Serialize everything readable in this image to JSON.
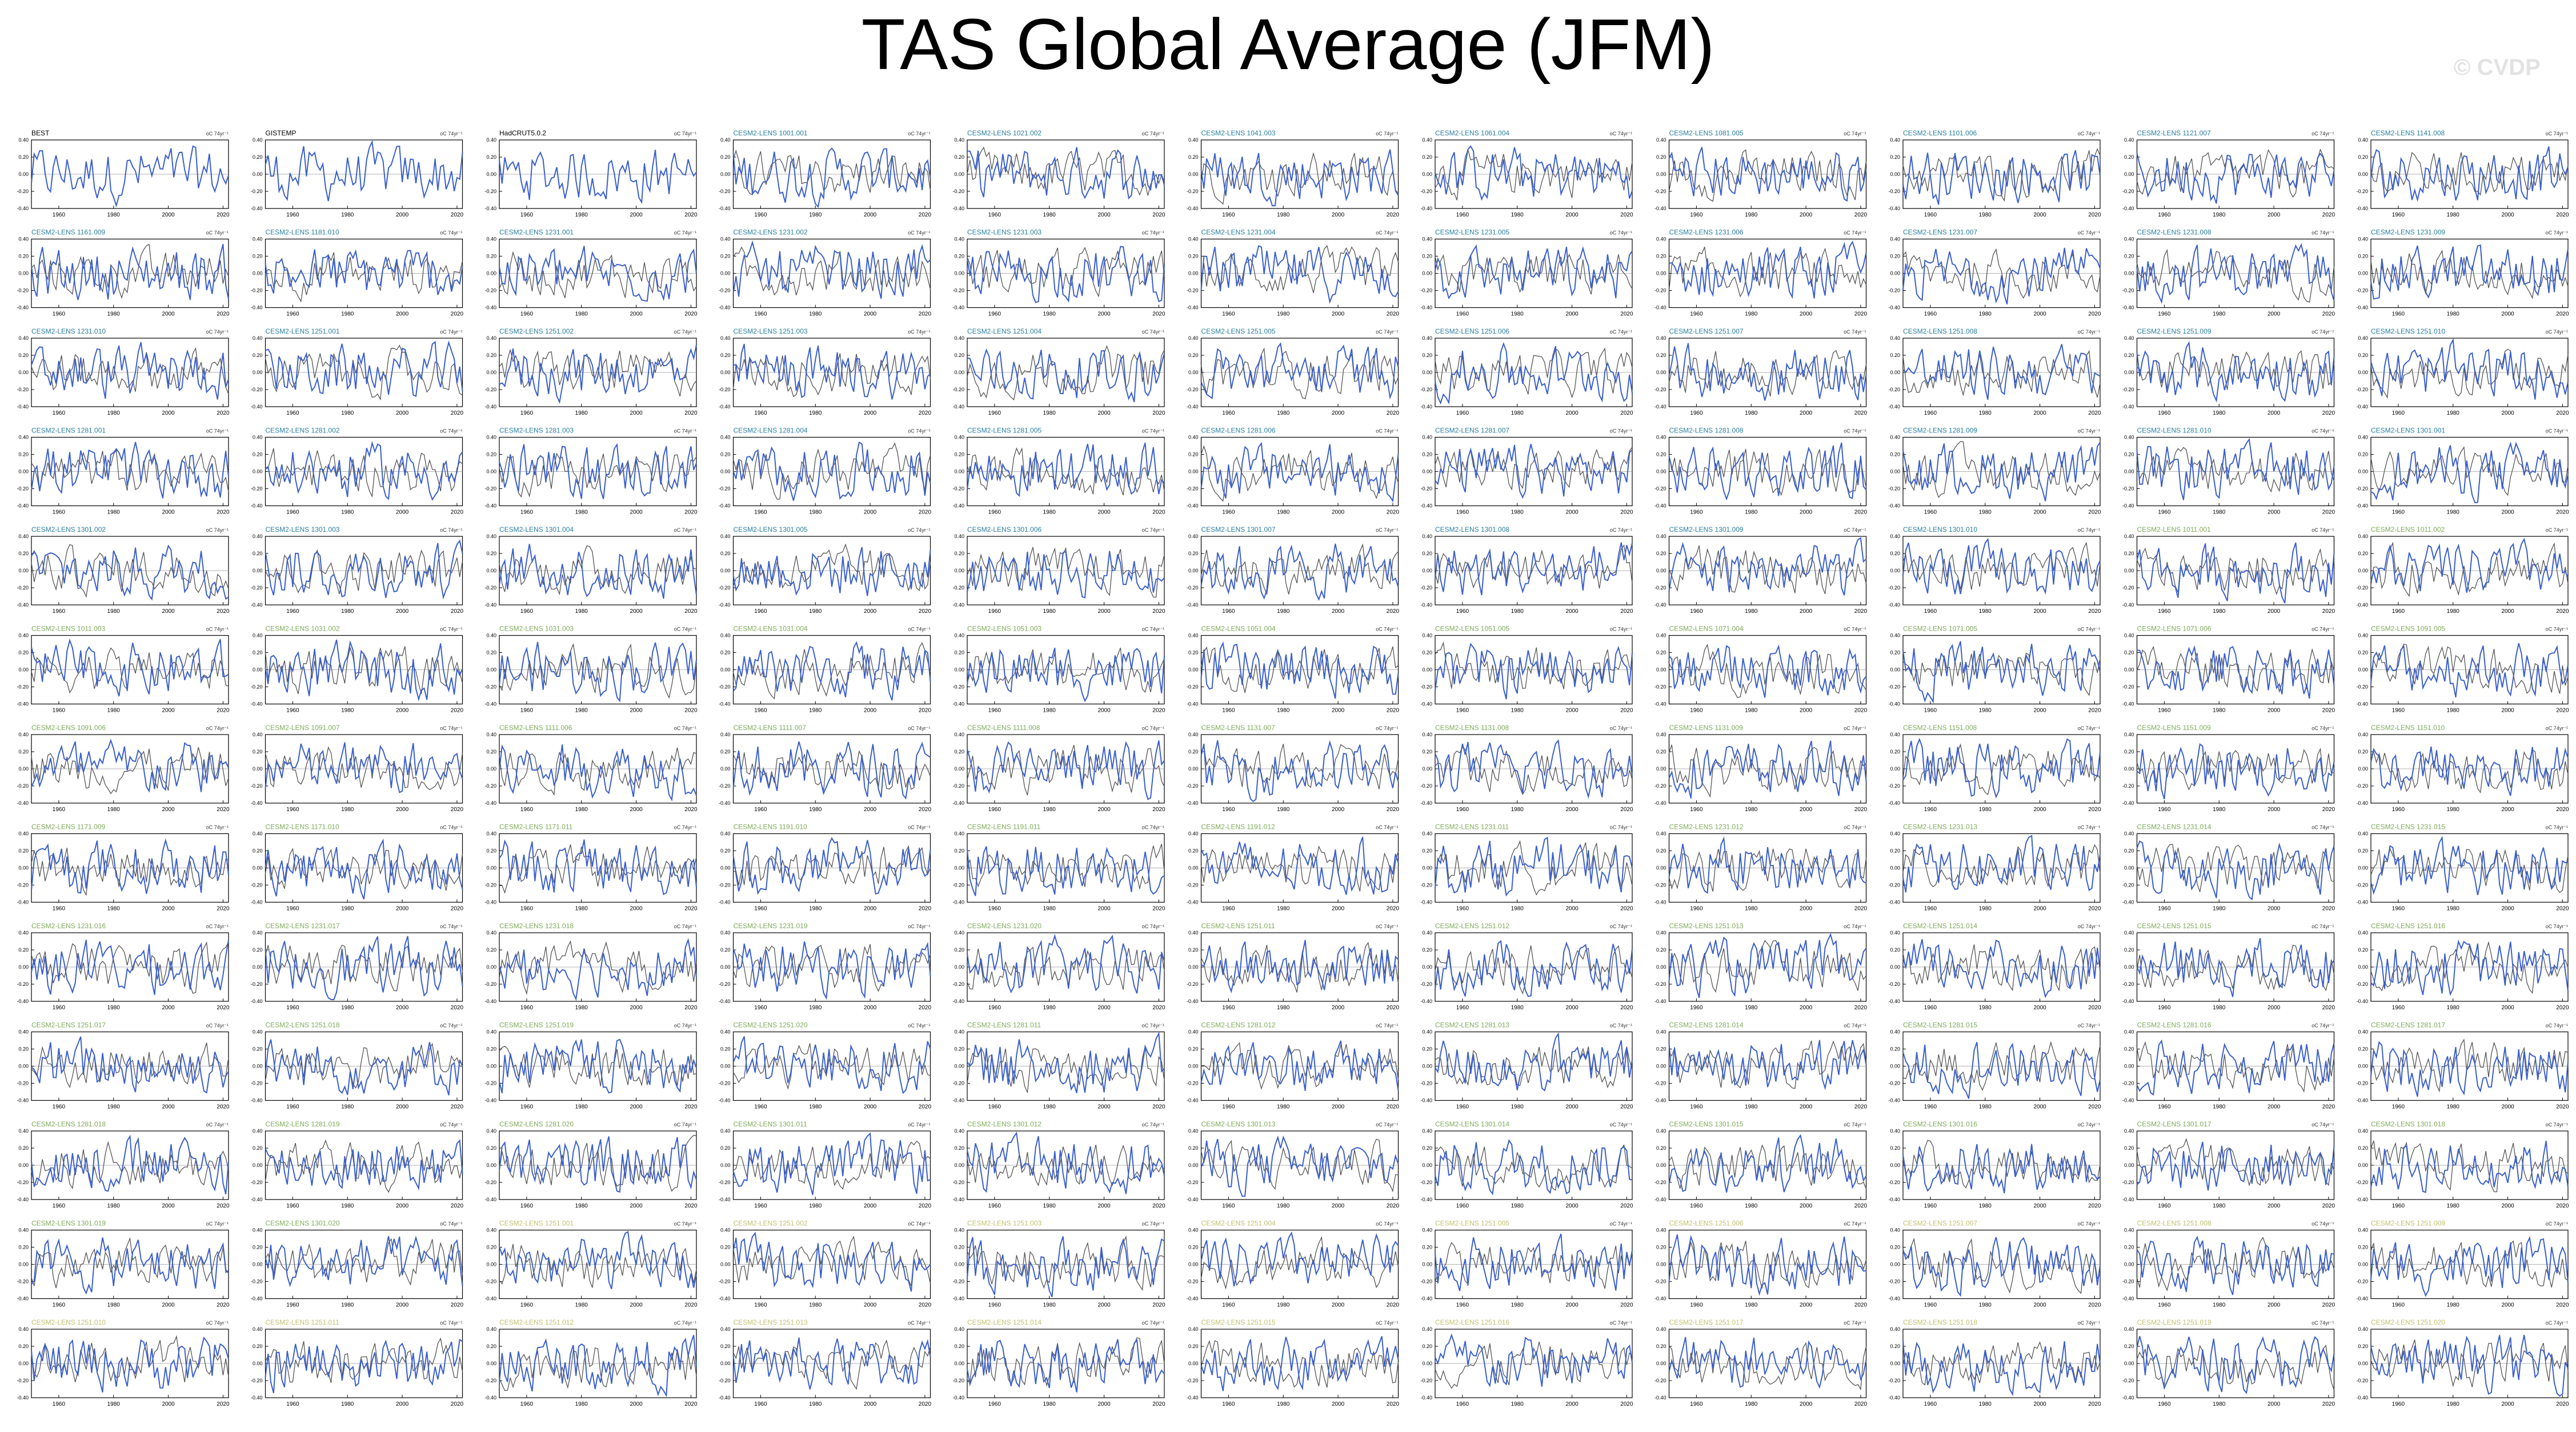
{
  "title": "TAS Global Average (JFM)",
  "watermark": "© CVDP",
  "colors": {
    "model_line": "#3a5fcd",
    "obs_line": "#555555",
    "obs_label": "#000000",
    "member_label_early": "#2a7fa0",
    "member_label_mid": "#7faa5a",
    "member_label_late": "#c0c070"
  },
  "chart_data": {
    "type": "line",
    "layout": "small-multiples",
    "series_kind": "obs-vs-ensemble",
    "x": {
      "range": [
        1950,
        2022
      ],
      "ticks": [
        "1960",
        "1980",
        "2000",
        "2020"
      ]
    },
    "y": {
      "range": [
        -0.4,
        0.4
      ],
      "ticks": [
        "-0.40",
        "-0.20",
        "0.00",
        "0.20",
        "0.40"
      ]
    },
    "units": "oC 74yr⁻¹",
    "obs_panels": [
      "BEST",
      "GISTEMP",
      "HadCRUT5.0.2"
    ],
    "member_groups": [
      {
        "prefix": "CESM2-LENS 1001.",
        "start": 1,
        "count": 1,
        "label_color": "early"
      },
      {
        "prefix": "CESM2-LENS 1021.",
        "start": 2,
        "count": 1,
        "label_color": "early"
      },
      {
        "prefix": "CESM2-LENS 1041.",
        "start": 3,
        "count": 1,
        "label_color": "early"
      },
      {
        "prefix": "CESM2-LENS 1061.",
        "start": 4,
        "count": 1,
        "label_color": "early"
      },
      {
        "prefix": "CESM2-LENS 1081.",
        "start": 5,
        "count": 1,
        "label_color": "early"
      },
      {
        "prefix": "CESM2-LENS 1101.",
        "start": 6,
        "count": 1,
        "label_color": "early"
      },
      {
        "prefix": "CESM2-LENS 1121.",
        "start": 7,
        "count": 1,
        "label_color": "early"
      },
      {
        "prefix": "CESM2-LENS 1141.",
        "start": 8,
        "count": 1,
        "label_color": "early"
      },
      {
        "prefix": "CESM2-LENS 1161.",
        "start": 9,
        "count": 1,
        "label_color": "early"
      },
      {
        "prefix": "CESM2-LENS 1181.",
        "start": 10,
        "count": 1,
        "label_color": "early"
      },
      {
        "prefix": "CESM2-LENS 1231.",
        "start": 1,
        "count": 10,
        "label_color": "early"
      },
      {
        "prefix": "CESM2-LENS 1251.",
        "start": 1,
        "count": 10,
        "label_color": "early"
      },
      {
        "prefix": "CESM2-LENS 1281.",
        "start": 1,
        "count": 10,
        "label_color": "early"
      },
      {
        "prefix": "CESM2-LENS 1301.",
        "start": 1,
        "count": 10,
        "label_color": "early"
      },
      {
        "prefix": "CESM2-LENS 1011.",
        "start": 1,
        "count": 3,
        "label_color": "mid"
      },
      {
        "prefix": "CESM2-LENS 1031.",
        "start": 2,
        "count": 3,
        "label_color": "mid"
      },
      {
        "prefix": "CESM2-LENS 1051.",
        "start": 3,
        "count": 3,
        "label_color": "mid"
      },
      {
        "prefix": "CESM2-LENS 1071.",
        "start": 4,
        "count": 3,
        "label_color": "mid"
      },
      {
        "prefix": "CESM2-LENS 1091.",
        "start": 5,
        "count": 3,
        "label_color": "mid"
      },
      {
        "prefix": "CESM2-LENS 1111.",
        "start": 6,
        "count": 3,
        "label_color": "mid"
      },
      {
        "prefix": "CESM2-LENS 1131.",
        "start": 7,
        "count": 3,
        "label_color": "mid"
      },
      {
        "prefix": "CESM2-LENS 1151.",
        "start": 8,
        "count": 3,
        "label_color": "mid"
      },
      {
        "prefix": "CESM2-LENS 1171.",
        "start": 9,
        "count": 3,
        "label_color": "mid"
      },
      {
        "prefix": "CESM2-LENS 1191.",
        "start": 10,
        "count": 3,
        "label_color": "mid"
      },
      {
        "prefix": "CESM2-LENS 1231.",
        "start": 11,
        "count": 10,
        "label_color": "mid"
      },
      {
        "prefix": "CESM2-LENS 1251.",
        "start": 11,
        "count": 10,
        "label_color": "mid"
      },
      {
        "prefix": "CESM2-LENS 1281.",
        "start": 11,
        "count": 10,
        "label_color": "mid"
      },
      {
        "prefix": "CESM2-LENS 1301.",
        "start": 11,
        "count": 10,
        "label_color": "mid"
      },
      {
        "prefix": "CESM2-LENS 1251.",
        "start": 1,
        "count": 30,
        "label_color": "late"
      },
      {
        "prefix": "CESM2-LENS 1301.",
        "start": 1,
        "count": 22,
        "label_color": "late"
      }
    ],
    "series": [
      {
        "name": "observations",
        "values": "synthetic-anomaly-noise"
      },
      {
        "name": "ensemble member",
        "values": "synthetic-anomaly-noise"
      }
    ],
    "panel_count": 130,
    "grid": false,
    "legend": "none"
  }
}
